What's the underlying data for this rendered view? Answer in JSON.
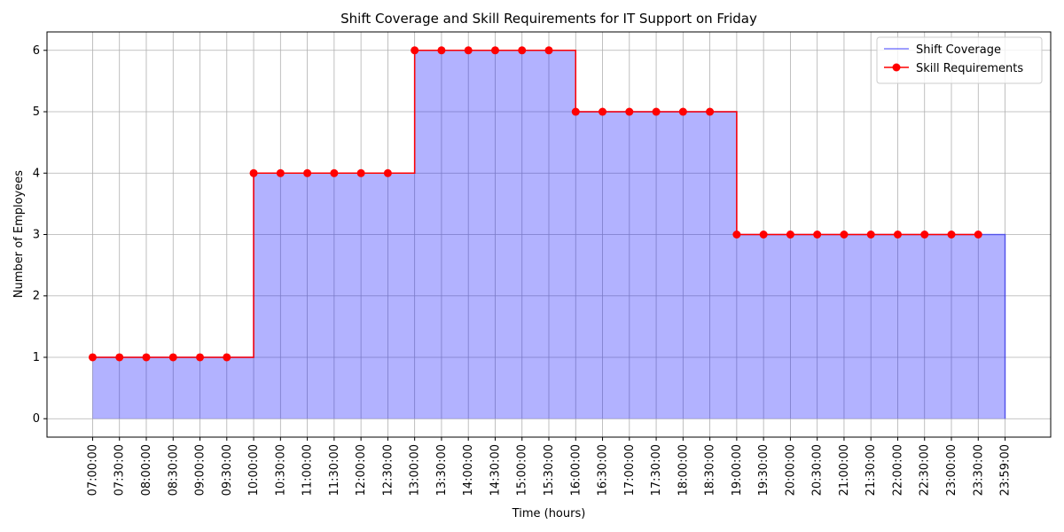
{
  "chart_data": {
    "type": "step",
    "title": "Shift Coverage and Skill Requirements for IT Support on Friday",
    "x_label": "Time (hours)",
    "y_label": "Number of Employees",
    "categories": [
      "07:00:00",
      "07:30:00",
      "08:00:00",
      "08:30:00",
      "09:00:00",
      "09:30:00",
      "10:00:00",
      "10:30:00",
      "11:00:00",
      "11:30:00",
      "12:00:00",
      "12:30:00",
      "13:00:00",
      "13:30:00",
      "14:00:00",
      "14:30:00",
      "15:00:00",
      "15:30:00",
      "16:00:00",
      "16:30:00",
      "17:00:00",
      "17:30:00",
      "18:00:00",
      "18:30:00",
      "19:00:00",
      "19:30:00",
      "20:00:00",
      "20:30:00",
      "21:00:00",
      "21:30:00",
      "22:00:00",
      "22:30:00",
      "23:00:00",
      "23:30:00",
      "23:59:00"
    ],
    "series": [
      {
        "name": "Shift Coverage",
        "color": "#0000ff",
        "fill": true,
        "values": [
          1,
          1,
          1,
          1,
          1,
          1,
          4,
          4,
          4,
          4,
          4,
          4,
          6,
          6,
          6,
          6,
          6,
          6,
          5,
          5,
          5,
          5,
          5,
          5,
          3,
          3,
          3,
          3,
          3,
          3,
          3,
          3,
          3,
          3,
          0
        ]
      },
      {
        "name": "Skill Requirements",
        "color": "#ff0000",
        "markers": true,
        "values": [
          1,
          1,
          1,
          1,
          1,
          1,
          4,
          4,
          4,
          4,
          4,
          4,
          6,
          6,
          6,
          6,
          6,
          6,
          5,
          5,
          5,
          5,
          5,
          5,
          3,
          3,
          3,
          3,
          3,
          3,
          3,
          3,
          3,
          3,
          null
        ]
      }
    ],
    "ylim": [
      -0.3,
      6.3
    ],
    "yticks": [
      0,
      1,
      2,
      3,
      4,
      5,
      6
    ],
    "grid": true,
    "legend": "upper right"
  }
}
